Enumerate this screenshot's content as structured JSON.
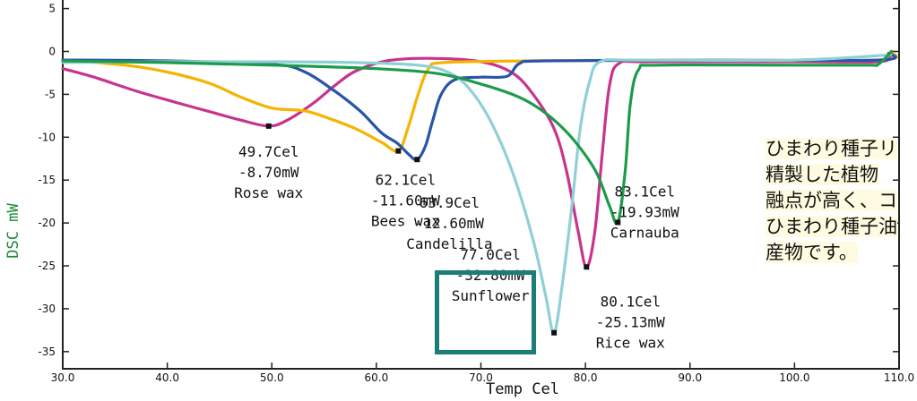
{
  "chart_data": {
    "type": "line",
    "xlabel": "Temp Cel",
    "ylabel": "DSC mW",
    "xlim": [
      30,
      110
    ],
    "ylim": [
      -37,
      6
    ],
    "x_ticks": [
      "30.0",
      "40.0",
      "50.0",
      "60.0",
      "70.0",
      "80.0",
      "90.0",
      "100.0",
      "110.0"
    ],
    "y_ticks": [
      "5",
      "0",
      "-5",
      "-10",
      "-15",
      "-20",
      "-25",
      "-30",
      "-35"
    ],
    "series": [
      {
        "color": "#c8338e",
        "points": [
          [
            30,
            -2
          ],
          [
            33,
            -3
          ],
          [
            37,
            -4.6
          ],
          [
            41,
            -6
          ],
          [
            44,
            -7
          ],
          [
            47,
            -8
          ],
          [
            49.7,
            -8.7
          ],
          [
            51.5,
            -8
          ],
          [
            54,
            -6
          ],
          [
            56,
            -4
          ],
          [
            58,
            -2.3
          ],
          [
            61,
            -1.1
          ],
          [
            65,
            -0.8
          ],
          [
            70,
            -1.2
          ],
          [
            73,
            -2.5
          ],
          [
            75,
            -5
          ],
          [
            77,
            -9
          ],
          [
            78.2,
            -14
          ],
          [
            79.3,
            -21
          ],
          [
            80.1,
            -25.13
          ],
          [
            80.9,
            -21
          ],
          [
            81.6,
            -12
          ],
          [
            82.3,
            -4
          ],
          [
            83.2,
            -1.4
          ],
          [
            86,
            -1.2
          ],
          [
            100,
            -1.2
          ],
          [
            108,
            -1.2
          ],
          [
            109.2,
            -0.5
          ]
        ]
      },
      {
        "color": "#f4b400",
        "points": [
          [
            30,
            -1
          ],
          [
            36,
            -1.6
          ],
          [
            40,
            -2.4
          ],
          [
            44,
            -3.7
          ],
          [
            47,
            -5.3
          ],
          [
            50,
            -6.6
          ],
          [
            53,
            -6.9
          ],
          [
            55,
            -7.6
          ],
          [
            58,
            -9
          ],
          [
            60.5,
            -10.6
          ],
          [
            62.1,
            -11.6
          ],
          [
            63,
            -9
          ],
          [
            64,
            -5
          ],
          [
            65,
            -2
          ],
          [
            66.5,
            -1.3
          ],
          [
            75,
            -1.1
          ],
          [
            90,
            -1
          ],
          [
            108,
            -1
          ],
          [
            109.2,
            0
          ]
        ]
      },
      {
        "color": "#2855a8",
        "points": [
          [
            30,
            -1
          ],
          [
            40,
            -1.1
          ],
          [
            50,
            -1.5
          ],
          [
            53,
            -2.3
          ],
          [
            56,
            -4.6
          ],
          [
            58.5,
            -7
          ],
          [
            60.5,
            -9.5
          ],
          [
            62,
            -10.7
          ],
          [
            63.1,
            -12
          ],
          [
            63.9,
            -12.6
          ],
          [
            64.7,
            -11
          ],
          [
            65.4,
            -8
          ],
          [
            66.2,
            -5
          ],
          [
            67.5,
            -3.3
          ],
          [
            70,
            -3
          ],
          [
            72.5,
            -2.9
          ],
          [
            73.7,
            -1.4
          ],
          [
            76,
            -1.1
          ],
          [
            90,
            -1
          ],
          [
            108,
            -1
          ],
          [
            109,
            -0.2
          ]
        ]
      },
      {
        "color": "#8fd0d6",
        "points": [
          [
            30,
            -1.3
          ],
          [
            40,
            -1.2
          ],
          [
            50,
            -1.2
          ],
          [
            58,
            -1.3
          ],
          [
            64,
            -1.6
          ],
          [
            67,
            -2.5
          ],
          [
            69,
            -4.5
          ],
          [
            71,
            -8.3
          ],
          [
            73,
            -14
          ],
          [
            75,
            -22
          ],
          [
            76.2,
            -28.5
          ],
          [
            77,
            -32.8
          ],
          [
            77.8,
            -27
          ],
          [
            78.7,
            -18
          ],
          [
            79.5,
            -9
          ],
          [
            80.4,
            -3.5
          ],
          [
            81.4,
            -1.2
          ],
          [
            85,
            -1
          ],
          [
            100,
            -1
          ],
          [
            109.2,
            -0.4
          ]
        ]
      },
      {
        "color": "#1e9b4a",
        "points": [
          [
            30,
            -1.1
          ],
          [
            40,
            -1.3
          ],
          [
            50,
            -1.6
          ],
          [
            60,
            -2
          ],
          [
            66,
            -2.6
          ],
          [
            70,
            -3.8
          ],
          [
            73,
            -5
          ],
          [
            75,
            -6.2
          ],
          [
            77,
            -8
          ],
          [
            79,
            -10.5
          ],
          [
            81,
            -14
          ],
          [
            82.3,
            -18
          ],
          [
            83.1,
            -19.93
          ],
          [
            83.8,
            -14
          ],
          [
            84.3,
            -6
          ],
          [
            85.1,
            -2.1
          ],
          [
            87,
            -1.6
          ],
          [
            100,
            -1.6
          ],
          [
            107,
            -1.6
          ],
          [
            108,
            -1.5
          ],
          [
            109.3,
            0
          ]
        ]
      }
    ],
    "annotations": [
      {
        "x": 49.7,
        "y": -8.7,
        "lines": [
          "49.7Cel",
          "-8.70mW",
          "Rose wax"
        ]
      },
      {
        "x": 62.1,
        "y": -11.6,
        "lines": [
          "62.1Cel",
          "-11.60mW",
          "Bees wax"
        ]
      },
      {
        "x": 63.9,
        "y": -12.6,
        "lines": [
          "63.9Cel",
          "-12.60mW",
          "Candelilla"
        ]
      },
      {
        "x": 83.1,
        "y": -19.93,
        "lines": [
          "83.1Cel",
          "-19.93mW",
          "Carnauba"
        ]
      },
      {
        "x": 80.1,
        "y": -25.13,
        "lines": [
          "80.1Cel",
          "-25.13mW",
          "Rice wax"
        ]
      },
      {
        "x": 77.0,
        "y": -32.8,
        "lines": [
          "77.0Cel",
          "-32.80mW",
          "Sunflower"
        ]
      }
    ],
    "grid": false
  },
  "side_note": {
    "lines": [
      "ひまわり種子リ",
      "精製した植物",
      "融点が高く、コ",
      "ひまわり種子油",
      "産物です。"
    ]
  }
}
